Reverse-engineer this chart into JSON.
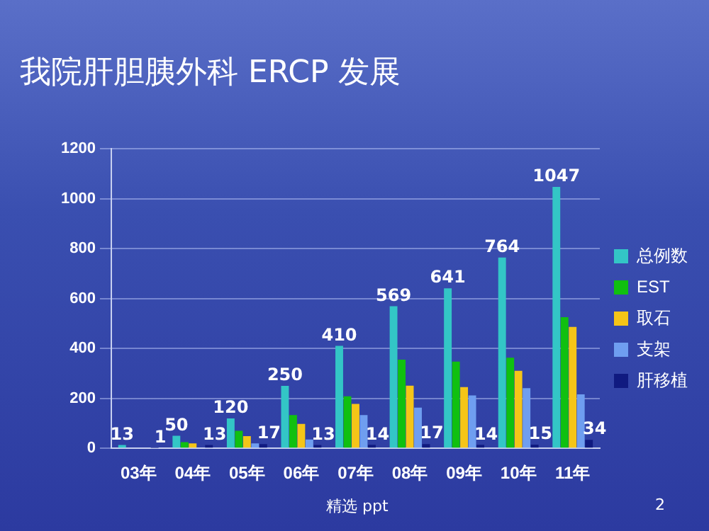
{
  "chart_data": {
    "type": "bar",
    "title": "我院肝胆胰外科 ERCP 发展",
    "categories": [
      "03年",
      "04年",
      "05年",
      "06年",
      "07年",
      "08年",
      "09年",
      "10年",
      "11年"
    ],
    "series": [
      {
        "name": "总例数",
        "color": "#33c6c6",
        "values": [
          13,
          50,
          120,
          250,
          410,
          569,
          641,
          764,
          1047
        ],
        "value_labels": [
          "13",
          "50",
          "120",
          "250",
          "410",
          "569",
          "641",
          "764",
          "1047"
        ]
      },
      {
        "name": "EST",
        "color": "#10c010",
        "values": [
          3,
          25,
          70,
          133,
          208,
          355,
          347,
          363,
          525
        ]
      },
      {
        "name": "取石",
        "color": "#f5c518",
        "values": [
          null,
          20,
          49,
          98,
          178,
          251,
          245,
          310,
          486
        ]
      },
      {
        "name": "支架",
        "color": "#6f9ef0",
        "values": [
          null,
          null,
          20,
          35,
          133,
          163,
          212,
          241,
          216
        ]
      },
      {
        "name": "肝移植",
        "color": "#101a80",
        "values": [
          1,
          13,
          17,
          13,
          14,
          17,
          14,
          15,
          34
        ],
        "value_labels": [
          "1",
          "13",
          "17",
          "13",
          "14",
          "17",
          "14",
          "15",
          "34"
        ]
      }
    ],
    "ylim": [
      0,
      1200
    ],
    "yticks": [
      0,
      200,
      400,
      600,
      800,
      1000,
      1200
    ],
    "grid": "y",
    "legend": "right",
    "annotations": [
      "精选 ppt",
      "2"
    ]
  }
}
